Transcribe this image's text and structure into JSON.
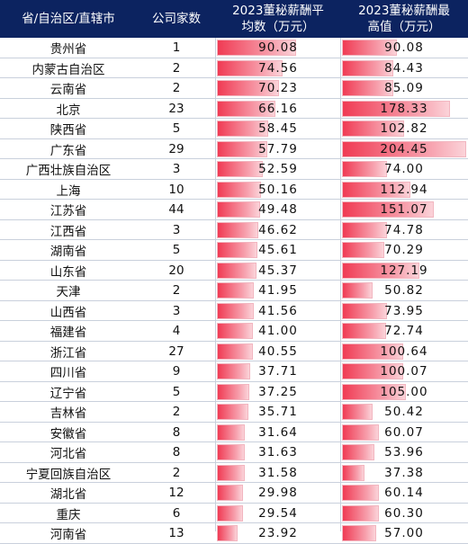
{
  "header": {
    "province": "省/自治区/直辖市",
    "count": "公司家数",
    "avg_line1": "2023董秘薪酬平",
    "avg_line2": "均数（万元）",
    "max_line1": "2023董秘薪酬最",
    "max_line2": "高值（万元）"
  },
  "colors": {
    "header_bg": "#0c2360",
    "bar_start": "#f03b54",
    "bar_end": "#fbd3d9"
  },
  "rows": [
    {
      "province": "贵州省",
      "count": "1",
      "avg": "90.08",
      "max": "90.08"
    },
    {
      "province": "内蒙古自治区",
      "count": "2",
      "avg": "74.56",
      "max": "84.43"
    },
    {
      "province": "云南省",
      "count": "2",
      "avg": "70.23",
      "max": "85.09"
    },
    {
      "province": "北京",
      "count": "23",
      "avg": "66.16",
      "max": "178.33"
    },
    {
      "province": "陕西省",
      "count": "5",
      "avg": "58.45",
      "max": "102.82"
    },
    {
      "province": "广东省",
      "count": "29",
      "avg": "57.79",
      "max": "204.45"
    },
    {
      "province": "广西壮族自治区",
      "count": "3",
      "avg": "52.59",
      "max": "74.00"
    },
    {
      "province": "上海",
      "count": "10",
      "avg": "50.16",
      "max": "112.94"
    },
    {
      "province": "江苏省",
      "count": "44",
      "avg": "49.48",
      "max": "151.07"
    },
    {
      "province": "江西省",
      "count": "3",
      "avg": "46.62",
      "max": "74.78"
    },
    {
      "province": "湖南省",
      "count": "5",
      "avg": "45.61",
      "max": "70.29"
    },
    {
      "province": "山东省",
      "count": "20",
      "avg": "45.37",
      "max": "127.19"
    },
    {
      "province": "天津",
      "count": "2",
      "avg": "41.95",
      "max": "50.82"
    },
    {
      "province": "山西省",
      "count": "3",
      "avg": "41.56",
      "max": "73.95"
    },
    {
      "province": "福建省",
      "count": "4",
      "avg": "41.00",
      "max": "72.74"
    },
    {
      "province": "浙江省",
      "count": "27",
      "avg": "40.55",
      "max": "100.64"
    },
    {
      "province": "四川省",
      "count": "9",
      "avg": "37.71",
      "max": "100.07"
    },
    {
      "province": "辽宁省",
      "count": "5",
      "avg": "37.25",
      "max": "105.00"
    },
    {
      "province": "吉林省",
      "count": "2",
      "avg": "35.71",
      "max": "50.42"
    },
    {
      "province": "安徽省",
      "count": "8",
      "avg": "31.64",
      "max": "60.07"
    },
    {
      "province": "河北省",
      "count": "8",
      "avg": "31.63",
      "max": "53.96"
    },
    {
      "province": "宁夏回族自治区",
      "count": "2",
      "avg": "31.58",
      "max": "37.38"
    },
    {
      "province": "湖北省",
      "count": "12",
      "avg": "29.98",
      "max": "60.14"
    },
    {
      "province": "重庆",
      "count": "6",
      "avg": "29.54",
      "max": "60.30"
    },
    {
      "province": "河南省",
      "count": "13",
      "avg": "23.92",
      "max": "57.00"
    }
  ]
}
